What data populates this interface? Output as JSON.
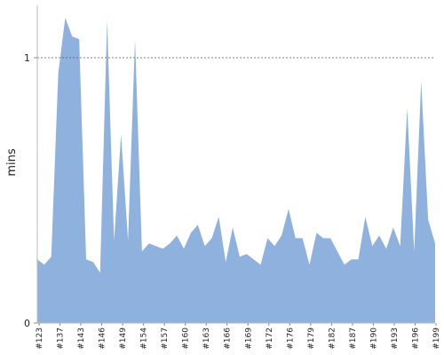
{
  "chart_data": {
    "type": "area",
    "title": "",
    "xlabel": "",
    "ylabel": "mins",
    "ylim": [
      0,
      1.2
    ],
    "yticks": [
      0,
      1
    ],
    "reference_line": 1,
    "grid": false,
    "color": "#8eb2dd",
    "xtick_labels": [
      "#123",
      "#137",
      "#143",
      "#146",
      "#149",
      "#154",
      "#157",
      "#160",
      "#163",
      "#166",
      "#169",
      "#172",
      "#176",
      "#179",
      "#182",
      "#187",
      "#190",
      "#193",
      "#196",
      "#199"
    ],
    "values": [
      0.24,
      0.22,
      0.25,
      0.94,
      1.15,
      1.08,
      1.07,
      0.24,
      0.23,
      0.19,
      1.14,
      0.31,
      0.71,
      0.31,
      1.07,
      0.27,
      0.3,
      0.29,
      0.28,
      0.3,
      0.33,
      0.28,
      0.34,
      0.37,
      0.29,
      0.32,
      0.4,
      0.23,
      0.36,
      0.25,
      0.26,
      0.24,
      0.22,
      0.32,
      0.29,
      0.33,
      0.43,
      0.32,
      0.32,
      0.22,
      0.34,
      0.32,
      0.32,
      0.27,
      0.22,
      0.24,
      0.24,
      0.4,
      0.29,
      0.33,
      0.28,
      0.36,
      0.29,
      0.81,
      0.27,
      0.91,
      0.39,
      0.3
    ]
  }
}
